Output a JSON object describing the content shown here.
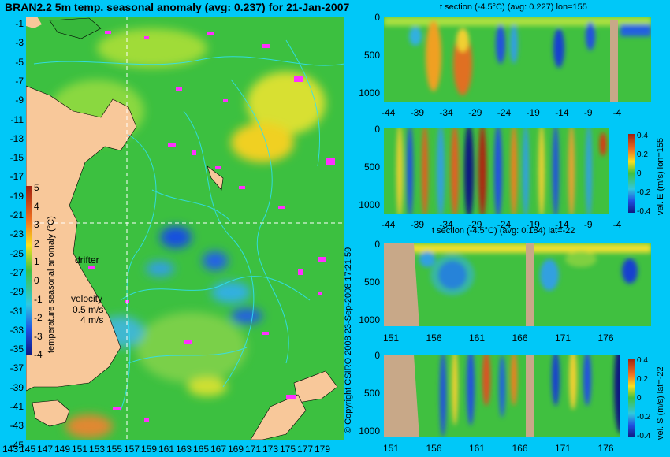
{
  "map": {
    "title": "BRAN2.2 5m temp. seasonal anomaly (avg: 0.237) for 21-Jan-2007",
    "lat_ticks": [
      "-1",
      "-3",
      "-5",
      "-7",
      "-9",
      "-11",
      "-13",
      "-15",
      "-17",
      "-19",
      "-21",
      "-23",
      "-25",
      "-27",
      "-29",
      "-31",
      "-33",
      "-35",
      "-37",
      "-39",
      "-41",
      "-43",
      "-45"
    ],
    "lon_ticks": [
      "143",
      "145",
      "147",
      "149",
      "151",
      "153",
      "155",
      "157",
      "159",
      "161",
      "163",
      "165",
      "167",
      "169",
      "171",
      "173",
      "175",
      "177",
      "179"
    ],
    "colorbar_label": "temperature seasonal anomaly (°C)",
    "colorbar_ticks": [
      "5",
      "4",
      "3",
      "2",
      "1",
      "0",
      "-1",
      "-2",
      "-3",
      "-4"
    ],
    "drifter_label": "drifter",
    "velocity_label": "velocity",
    "velocity_speed": "0.5 m/s",
    "velocity_dir": "4 m/s",
    "copyright": "© Copyright CSIRO 2008  23-Sep-2008 17:21:59"
  },
  "panels": {
    "p1_title": "t section (-4.5°C) (avg: 0.227) lon=155",
    "p2_label": "vel. E (m/s) lon=155",
    "p3_title": "t section (-4.5°C) (avg: 0.184) lat=-22",
    "p4_label": "vel. S (m/s) lat=-22",
    "depth_ticks": [
      "0",
      "500",
      "1000"
    ],
    "lat_ticks": [
      "-44",
      "-39",
      "-34",
      "-29",
      "-24",
      "-19",
      "-14",
      "-9",
      "-4"
    ],
    "lon_ticks": [
      "151",
      "156",
      "161",
      "166",
      "171",
      "176"
    ],
    "vel_ticks": [
      "0.4",
      "0.2",
      "0",
      "-0.2",
      "-0.4"
    ]
  },
  "colors": {
    "background": "#00c8f8",
    "land": "#f8c89a",
    "section_land": "#c8a888",
    "ocean_base": "#40c040"
  },
  "chart_data": [
    {
      "type": "heatmap",
      "title": "BRAN2.2 5m temp. seasonal anomaly (avg: 0.237) for 21-Jan-2007",
      "xlabel": "",
      "ylabel": "",
      "xlim": [
        143,
        179
      ],
      "ylim": [
        -45,
        -1
      ],
      "colorbar_range": [
        -4,
        5
      ]
    },
    {
      "type": "heatmap",
      "title": "t section (-4.5°C) (avg: 0.227) lon=155",
      "xlim": [
        -44,
        -4
      ],
      "ylim": [
        1000,
        0
      ]
    },
    {
      "type": "heatmap",
      "title": "",
      "ylabel": "vel. E (m/s) lon=155",
      "xlim": [
        -44,
        -4
      ],
      "ylim": [
        1000,
        0
      ],
      "colorbar_range": [
        -0.4,
        0.4
      ]
    },
    {
      "type": "heatmap",
      "title": "t section (-4.5°C) (avg: 0.184) lat=-22",
      "xlim": [
        151,
        179
      ],
      "ylim": [
        1000,
        0
      ]
    },
    {
      "type": "heatmap",
      "title": "",
      "ylabel": "vel. S (m/s) lat=-22",
      "xlim": [
        151,
        179
      ],
      "ylim": [
        1000,
        0
      ],
      "colorbar_range": [
        -0.4,
        0.4
      ]
    }
  ]
}
